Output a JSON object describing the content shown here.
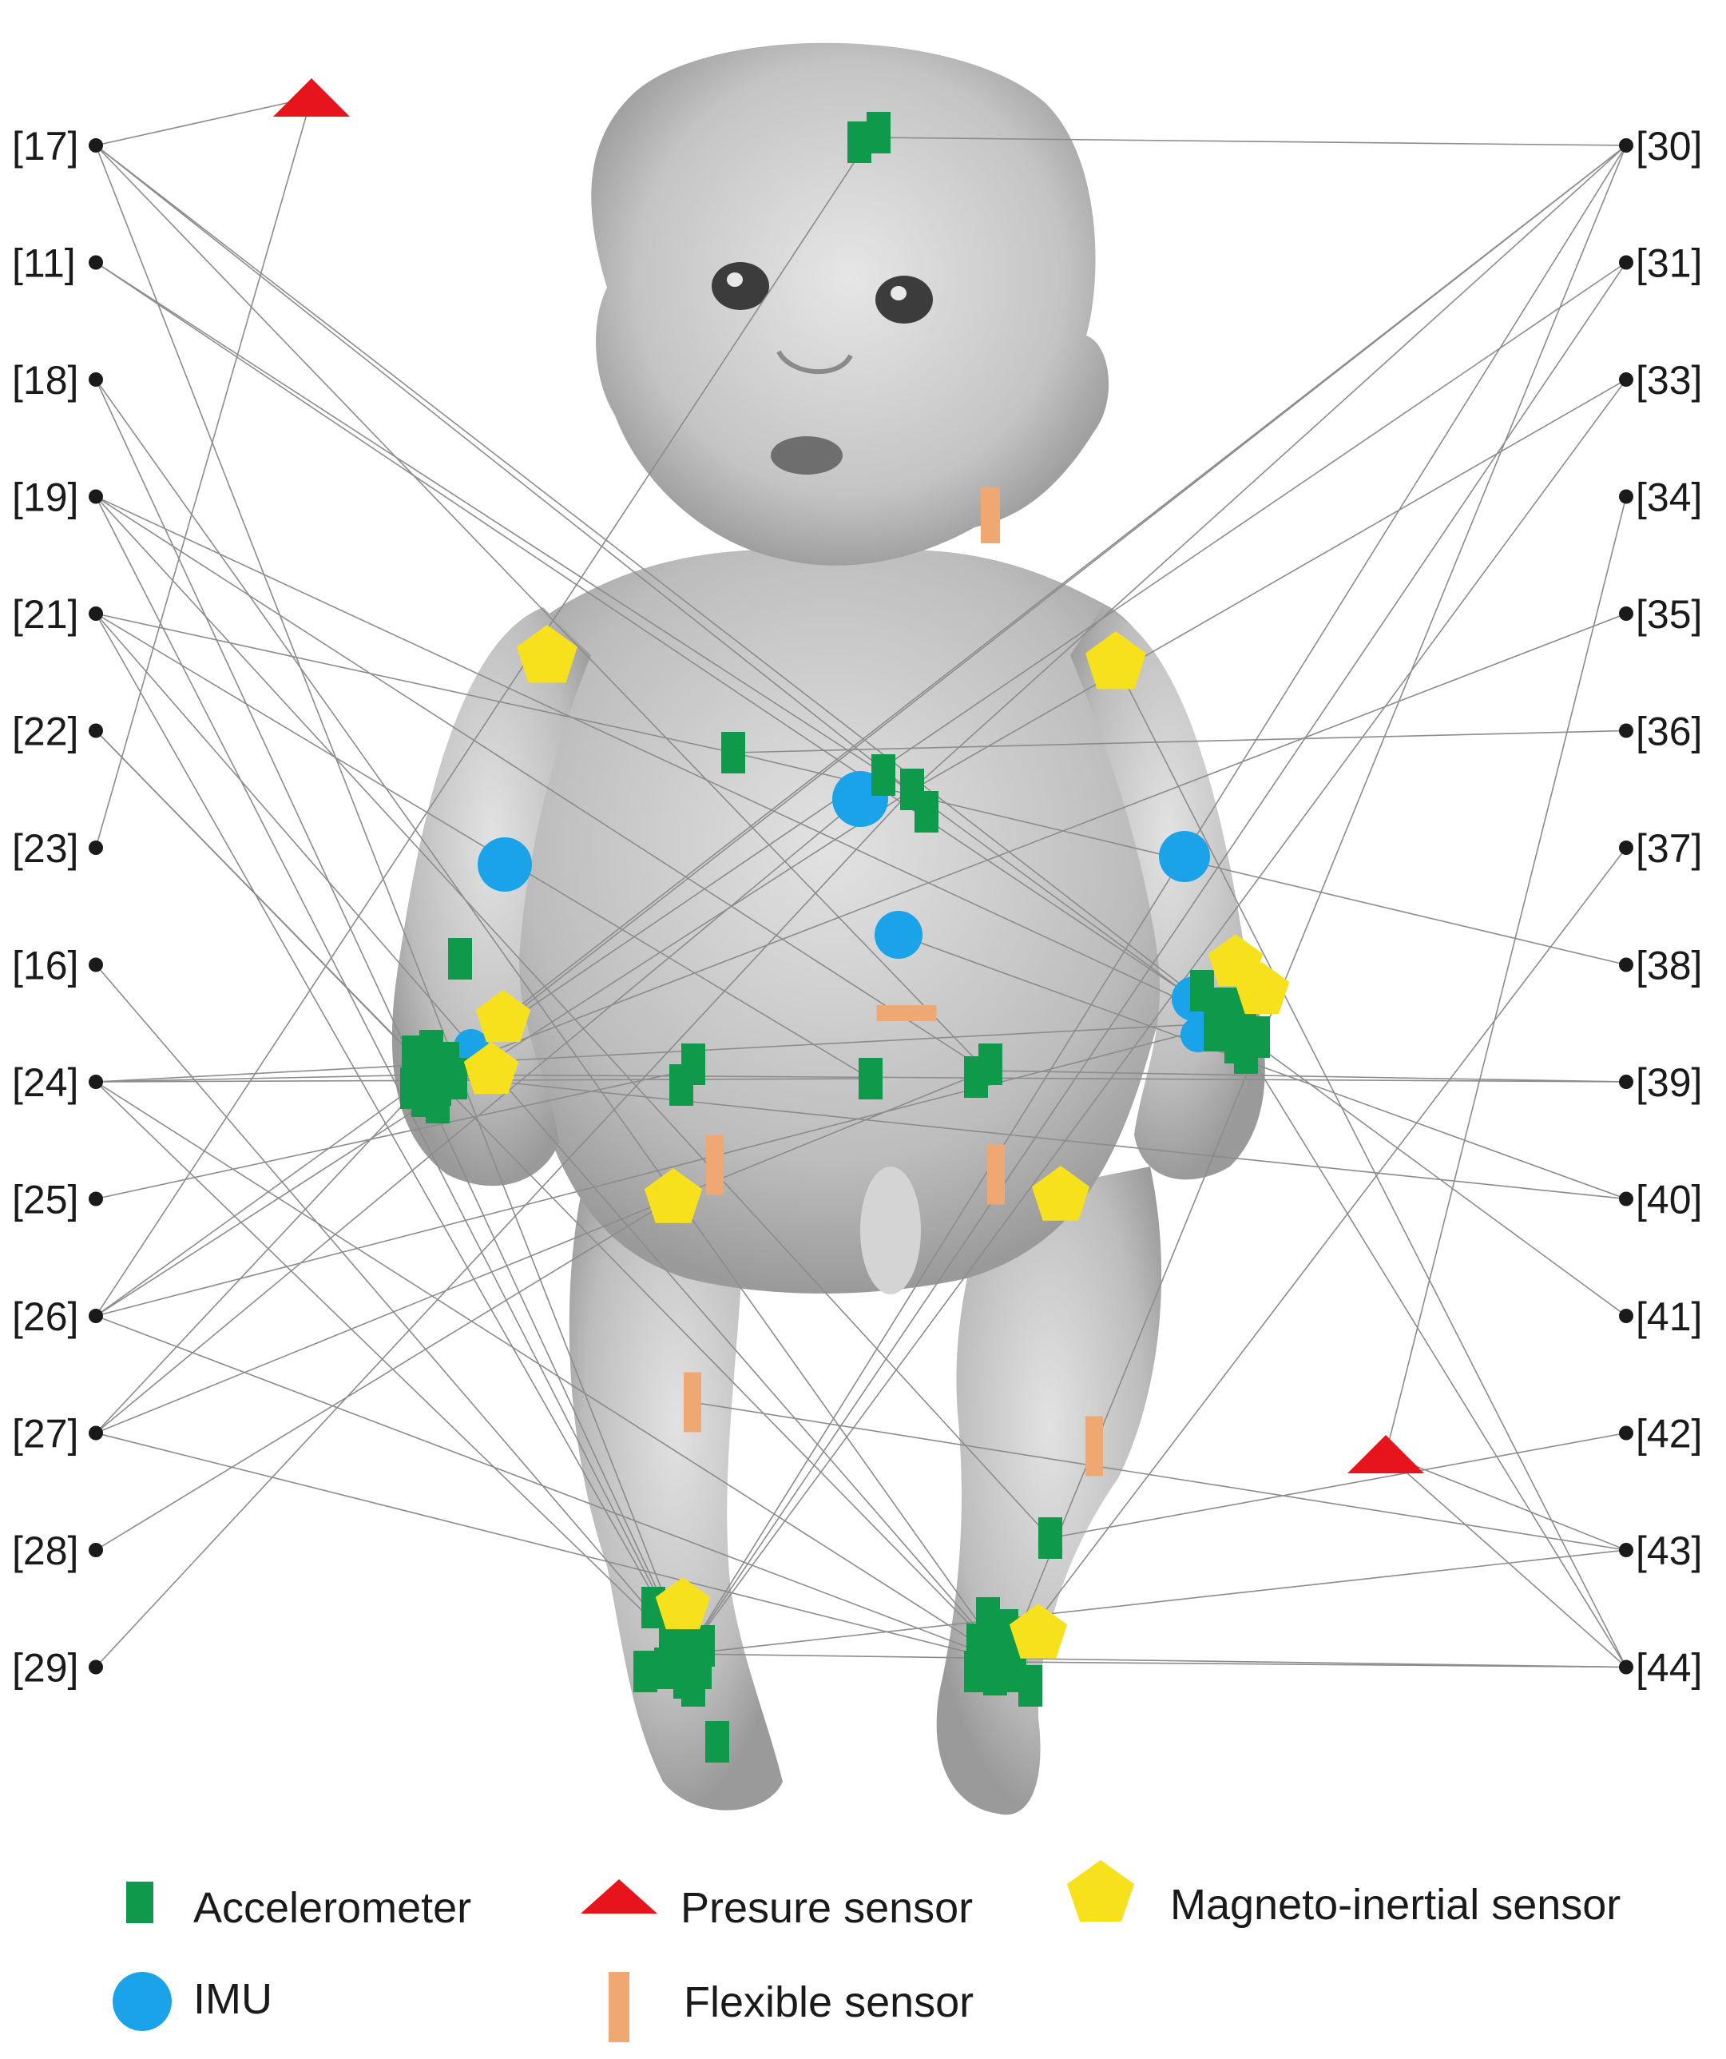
{
  "figure": {
    "background": "#ffffff",
    "subject": "infant doll photograph (grayscale)"
  },
  "colors": {
    "accelerometer": "#0e9a4a",
    "pressure": "#e8141c",
    "magneto": "#f7e11c",
    "imu": "#1aa3e8",
    "flexible": "#f0a872",
    "line": "#8c8c8c",
    "node": "#1a1a1a"
  },
  "references": {
    "left": [
      "[17]",
      "[11]",
      "[18]",
      "[19]",
      "[21]",
      "[22]",
      "[23]",
      "[16]",
      "[24]",
      "[25]",
      "[26]",
      "[27]",
      "[28]",
      "[29]"
    ],
    "right": [
      "[30]",
      "[31]",
      "[33]",
      "[34]",
      "[35]",
      "[36]",
      "[37]",
      "[38]",
      "[39]",
      "[40]",
      "[41]",
      "[42]",
      "[43]",
      "[44]"
    ]
  },
  "legend": {
    "accelerometer": "Accelerometer",
    "pressure": "Presure sensor",
    "magneto": "Magneto-inertial sensor",
    "imu": "IMU",
    "flexible": "Flexible sensor"
  }
}
